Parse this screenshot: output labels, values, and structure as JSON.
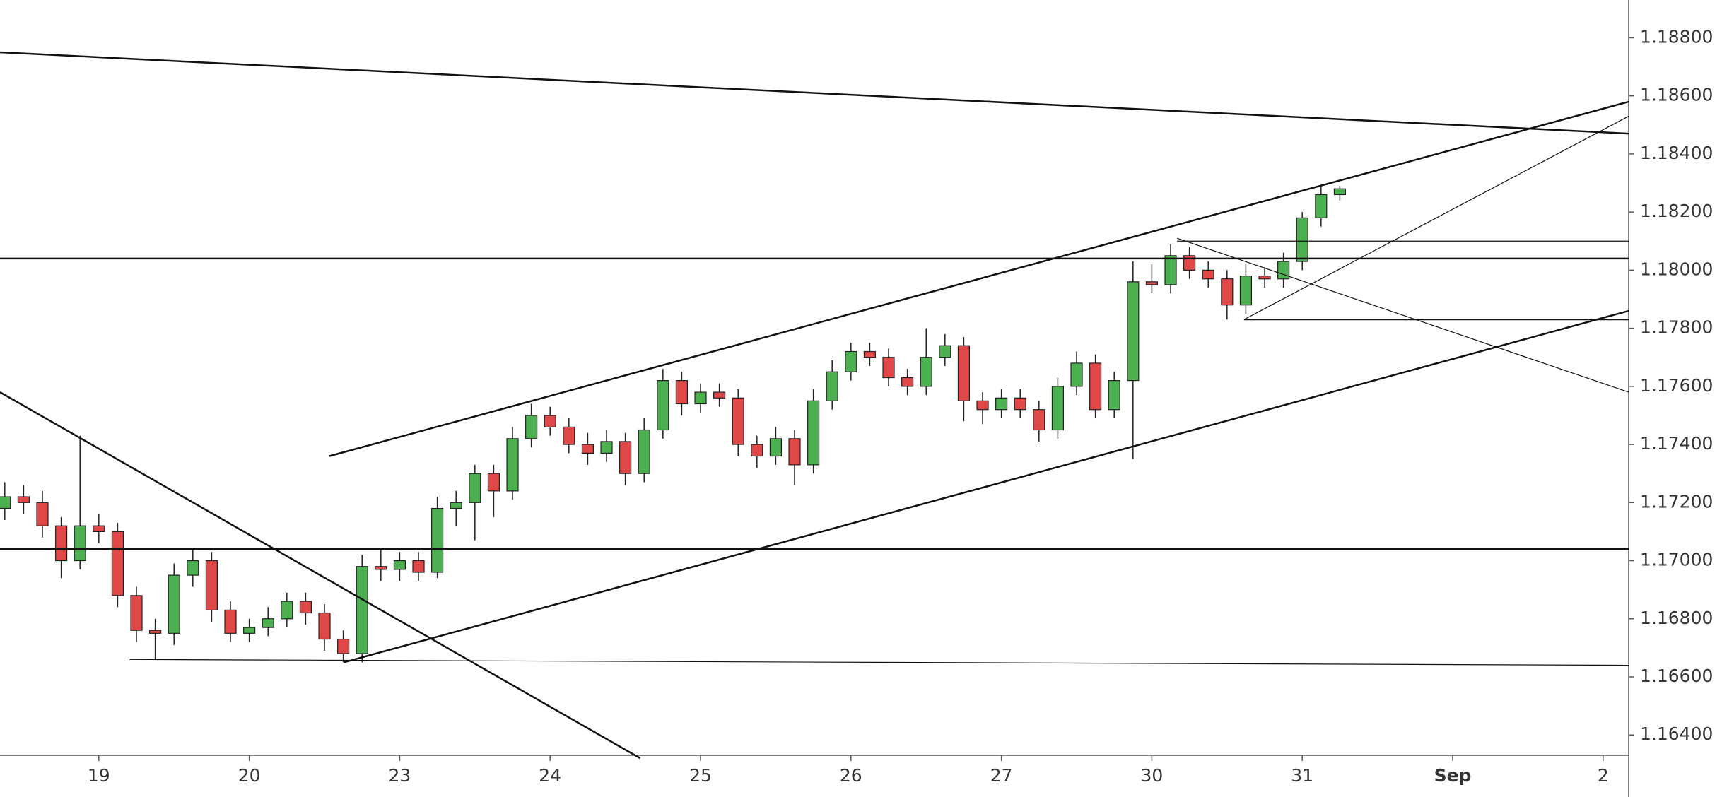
{
  "chart_data": {
    "type": "candlestick",
    "up_color": "#4caf50",
    "down_color": "#e04848",
    "x": [
      -0.625,
      -0.5,
      -0.375,
      -0.25,
      -0.125,
      0,
      0.125,
      0.25,
      0.375,
      0.5,
      0.625,
      0.75,
      0.875,
      1,
      1.125,
      1.25,
      1.375,
      1.5,
      1.625,
      1.75,
      1.875,
      2,
      2.125,
      2.25,
      2.375,
      2.5,
      2.625,
      2.75,
      2.875,
      3,
      3.125,
      3.25,
      3.375,
      3.5,
      3.625,
      3.75,
      3.875,
      4,
      4.125,
      4.25,
      4.375,
      4.5,
      4.625,
      4.75,
      4.875,
      5,
      5.125,
      5.25,
      5.375,
      5.5,
      5.625,
      5.75,
      5.875,
      6,
      6.125,
      6.25,
      6.375,
      6.5,
      6.625,
      6.75,
      6.875,
      7,
      7.125,
      7.25,
      7.375,
      7.5,
      7.625,
      7.75,
      7.875,
      8,
      8.125,
      8.25
    ],
    "open": [
      1.1718,
      1.1722,
      1.172,
      1.1712,
      1.17,
      1.1712,
      1.171,
      1.1688,
      1.1676,
      1.1675,
      1.1695,
      1.17,
      1.1683,
      1.1675,
      1.1677,
      1.168,
      1.1686,
      1.1682,
      1.1673,
      1.1668,
      1.1698,
      1.1697,
      1.17,
      1.1696,
      1.1718,
      1.172,
      1.173,
      1.1724,
      1.1742,
      1.175,
      1.1746,
      1.174,
      1.1737,
      1.1741,
      1.173,
      1.1745,
      1.1762,
      1.1754,
      1.1758,
      1.1756,
      1.174,
      1.1736,
      1.1742,
      1.1733,
      1.1755,
      1.1765,
      1.1772,
      1.177,
      1.1763,
      1.176,
      1.177,
      1.1774,
      1.1755,
      1.1752,
      1.1756,
      1.1752,
      1.1745,
      1.176,
      1.1768,
      1.1752,
      1.1762,
      1.1796,
      1.1795,
      1.1805,
      1.18,
      1.1797,
      1.1788,
      1.1798,
      1.1797,
      1.1803,
      1.1818,
      1.1826
    ],
    "high": [
      1.1727,
      1.1726,
      1.1724,
      1.1715,
      1.1743,
      1.1716,
      1.1713,
      1.1691,
      1.168,
      1.1699,
      1.1704,
      1.1703,
      1.1686,
      1.168,
      1.1684,
      1.1689,
      1.1689,
      1.1685,
      1.1676,
      1.1702,
      1.1704,
      1.1703,
      1.1703,
      1.1722,
      1.1724,
      1.1733,
      1.1733,
      1.1746,
      1.1754,
      1.1753,
      1.1749,
      1.1744,
      1.1745,
      1.1744,
      1.1749,
      1.1766,
      1.1765,
      1.1761,
      1.1761,
      1.1759,
      1.1743,
      1.1746,
      1.1745,
      1.1759,
      1.1769,
      1.1775,
      1.1775,
      1.1773,
      1.1766,
      1.178,
      1.1778,
      1.1777,
      1.1758,
      1.1759,
      1.1759,
      1.1755,
      1.1763,
      1.1772,
      1.1771,
      1.1765,
      1.1803,
      1.1802,
      1.1809,
      1.1808,
      1.1803,
      1.18,
      1.1802,
      1.1801,
      1.1806,
      1.182,
      1.1829,
      1.1829
    ],
    "low": [
      1.1714,
      1.1716,
      1.1708,
      1.1694,
      1.1697,
      1.1706,
      1.1684,
      1.1672,
      1.1666,
      1.1671,
      1.1691,
      1.1679,
      1.1672,
      1.1672,
      1.1674,
      1.1677,
      1.1678,
      1.1669,
      1.1665,
      1.1665,
      1.1693,
      1.1693,
      1.1693,
      1.1694,
      1.1712,
      1.1707,
      1.1715,
      1.1721,
      1.1739,
      1.1743,
      1.1737,
      1.1733,
      1.1734,
      1.1726,
      1.1727,
      1.1742,
      1.175,
      1.1751,
      1.1753,
      1.1736,
      1.1732,
      1.1733,
      1.1726,
      1.173,
      1.1752,
      1.1762,
      1.1767,
      1.176,
      1.1757,
      1.1757,
      1.1767,
      1.1748,
      1.1747,
      1.1749,
      1.1749,
      1.1741,
      1.1742,
      1.1757,
      1.1749,
      1.1749,
      1.1735,
      1.1792,
      1.1792,
      1.1797,
      1.1794,
      1.1783,
      1.1785,
      1.1794,
      1.1794,
      1.18,
      1.1815,
      1.1824
    ],
    "close": [
      1.1722,
      1.172,
      1.1712,
      1.17,
      1.1712,
      1.171,
      1.1688,
      1.1676,
      1.1675,
      1.1695,
      1.17,
      1.1683,
      1.1675,
      1.1677,
      1.168,
      1.1686,
      1.1682,
      1.1673,
      1.1668,
      1.1698,
      1.1697,
      1.17,
      1.1696,
      1.1718,
      1.172,
      1.173,
      1.1724,
      1.1742,
      1.175,
      1.1746,
      1.174,
      1.1737,
      1.1741,
      1.173,
      1.1745,
      1.1762,
      1.1754,
      1.1758,
      1.1756,
      1.174,
      1.1736,
      1.1742,
      1.1733,
      1.1755,
      1.1765,
      1.1772,
      1.177,
      1.1763,
      1.176,
      1.177,
      1.1774,
      1.1755,
      1.1752,
      1.1756,
      1.1752,
      1.1745,
      1.176,
      1.1768,
      1.1752,
      1.1762,
      1.1796,
      1.1795,
      1.1805,
      1.18,
      1.1797,
      1.1788,
      1.1798,
      1.1797,
      1.1803,
      1.1818,
      1.1826,
      1.1828
    ],
    "xlim": [
      -0.657,
      10.17
    ],
    "ylim": [
      1.1633,
      1.1893
    ],
    "xticks": [
      {
        "value": 0,
        "label": "19"
      },
      {
        "value": 1,
        "label": "20"
      },
      {
        "value": 2,
        "label": "23"
      },
      {
        "value": 3,
        "label": "24"
      },
      {
        "value": 4,
        "label": "25"
      },
      {
        "value": 5,
        "label": "26"
      },
      {
        "value": 6,
        "label": "27"
      },
      {
        "value": 7,
        "label": "30"
      },
      {
        "value": 8,
        "label": "31"
      },
      {
        "value": 9,
        "label": "Sep"
      },
      {
        "value": 10,
        "label": "2"
      }
    ],
    "yticks": [
      {
        "value": 1.164,
        "label": "1.16400"
      },
      {
        "value": 1.166,
        "label": "1.16600"
      },
      {
        "value": 1.168,
        "label": "1.16800"
      },
      {
        "value": 1.17,
        "label": "1.17000"
      },
      {
        "value": 1.172,
        "label": "1.17200"
      },
      {
        "value": 1.174,
        "label": "1.17400"
      },
      {
        "value": 1.176,
        "label": "1.17600"
      },
      {
        "value": 1.178,
        "label": "1.17800"
      },
      {
        "value": 1.18,
        "label": "1.18000"
      },
      {
        "value": 1.182,
        "label": "1.18200"
      },
      {
        "value": 1.184,
        "label": "1.18400"
      },
      {
        "value": 1.186,
        "label": "1.18600"
      },
      {
        "value": 1.188,
        "label": "1.18800"
      }
    ],
    "lines": [
      {
        "x": [
          -0.657,
          10.17
        ],
        "y": [
          1.1875,
          1.1847
        ],
        "width": 2.5
      },
      {
        "x": [
          1.533,
          10.17
        ],
        "y": [
          1.1736,
          1.1858
        ],
        "width": 2.5
      },
      {
        "x": [
          1.628,
          10.17
        ],
        "y": [
          1.1665,
          1.1786
        ],
        "width": 2.5
      },
      {
        "x": [
          -0.657,
          3.599
        ],
        "y": [
          1.1758,
          1.1632
        ],
        "width": 2.5
      },
      {
        "x": [
          -0.657,
          10.17
        ],
        "y": [
          1.1804,
          1.1804
        ],
        "width": 2.5
      },
      {
        "x": [
          -0.657,
          10.17
        ],
        "y": [
          1.1704,
          1.1704
        ],
        "width": 2.5
      },
      {
        "x": [
          0.204,
          10.17
        ],
        "y": [
          1.1666,
          1.1664
        ],
        "width": 1.2
      },
      {
        "x": [
          7.168,
          10.17
        ],
        "y": [
          1.181,
          1.181
        ],
        "width": 1.2
      },
      {
        "x": [
          7.613,
          10.17
        ],
        "y": [
          1.1783,
          1.1783
        ],
        "width": 2
      },
      {
        "x": [
          7.168,
          10.17
        ],
        "y": [
          1.1811,
          1.1758
        ],
        "width": 1.2
      },
      {
        "x": [
          7.613,
          10.17
        ],
        "y": [
          1.1783,
          1.1853
        ],
        "width": 1.2
      }
    ]
  }
}
